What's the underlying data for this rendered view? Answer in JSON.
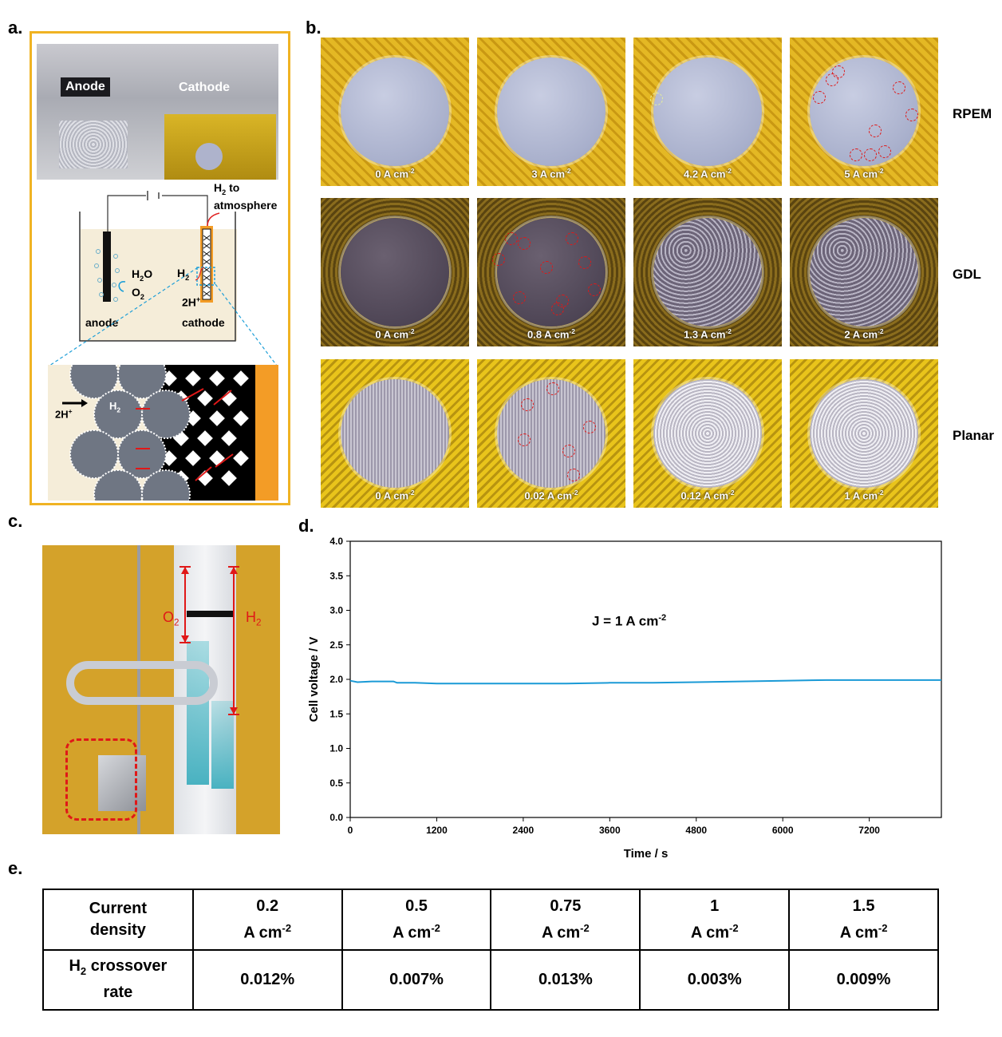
{
  "panel_labels": {
    "a": "a.",
    "b": "b.",
    "c": "c.",
    "d": "d.",
    "e": "e."
  },
  "panel_a": {
    "photo_anode": "Anode",
    "photo_cathode": "Cathode",
    "h2_to": "H",
    "h2_to_sub": "2",
    "h2_to_rest": " to",
    "atmosphere": "atmosphere",
    "h2o": "H",
    "h2o_sub": "2",
    "h2o_rest": "O",
    "o2": "O",
    "o2_sub": "2",
    "h2": "H",
    "h2_sub": "2",
    "proton": "2H",
    "proton_sup": "+",
    "anode": "anode",
    "cathode": "cathode",
    "zoom_proton": "2H",
    "zoom_proton_sup": "+",
    "zoom_h2": "H",
    "zoom_h2_sub": "2"
  },
  "panel_b": {
    "rows": [
      {
        "label": "RPEM",
        "captions": [
          "0 A cm",
          "3 A cm",
          "4.2 A cm",
          "5 A cm"
        ]
      },
      {
        "label": "GDL",
        "captions": [
          "0 A cm",
          "0.8 A cm",
          "1.3 A cm",
          "2 A cm"
        ]
      },
      {
        "label": "Planar",
        "captions": [
          "0 A cm",
          "0.02 A cm",
          "0.12 A cm",
          "1 A cm"
        ]
      }
    ],
    "unit_sup": "-2"
  },
  "panel_c": {
    "o2": "O",
    "o2_sub": "2",
    "h2": "H",
    "h2_sub": "2"
  },
  "panel_d": {
    "annotation": "J = 1 A cm",
    "annotation_sup": "-2"
  },
  "chart_data": {
    "type": "line",
    "xlabel": "Time / s",
    "ylabel": "Cell voltage / V",
    "xlim": [
      0,
      8200
    ],
    "ylim": [
      0.0,
      4.0
    ],
    "xticks": [
      0,
      1200,
      2400,
      3600,
      4800,
      6000,
      7200
    ],
    "yticks": [
      "0.0",
      "0.5",
      "1.0",
      "1.5",
      "2.0",
      "2.5",
      "3.0",
      "3.5",
      "4.0"
    ],
    "color": "#1a9ad6",
    "series": [
      {
        "x": [
          0,
          100,
          300,
          600,
          650,
          900,
          1200,
          1800,
          2400,
          3000,
          3600,
          4200,
          4800,
          5400,
          6000,
          6600,
          7200,
          7800,
          8200
        ],
        "y": [
          1.98,
          1.96,
          1.97,
          1.97,
          1.95,
          1.95,
          1.94,
          1.94,
          1.94,
          1.94,
          1.95,
          1.95,
          1.96,
          1.97,
          1.98,
          1.99,
          1.99,
          1.99,
          1.99
        ]
      }
    ]
  },
  "panel_e": {
    "header_label_1": "Current",
    "header_label_2": "density",
    "row_label_1": "H",
    "row_label_sub": "2",
    "row_label_rest": " crossover",
    "row_label_2": "rate",
    "unit": "A cm",
    "unit_sup": "-2",
    "columns": [
      "0.2",
      "0.5",
      "0.75",
      "1",
      "1.5"
    ],
    "rates": [
      "0.012%",
      "0.007%",
      "0.013%",
      "0.003%",
      "0.009%"
    ]
  }
}
